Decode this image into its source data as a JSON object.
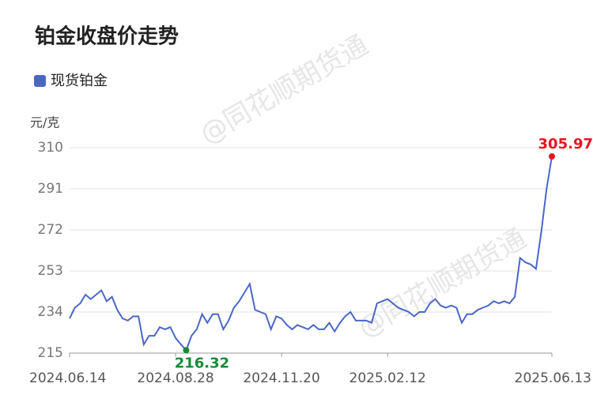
{
  "chart_data": {
    "type": "line",
    "title": "铂金收盘价走势",
    "y_label": "元/克",
    "watermark": "@同花顺期货通",
    "categories": [
      "2024.06.14",
      null,
      null,
      null,
      null,
      null,
      null,
      null,
      null,
      null,
      null,
      null,
      null,
      null,
      null,
      null,
      null,
      null,
      null,
      null,
      "2024.08.28",
      null,
      null,
      null,
      null,
      null,
      null,
      null,
      null,
      null,
      null,
      null,
      null,
      null,
      null,
      null,
      null,
      null,
      null,
      null,
      "2024.11.20",
      null,
      null,
      null,
      null,
      null,
      null,
      null,
      null,
      null,
      null,
      null,
      null,
      null,
      null,
      null,
      null,
      null,
      null,
      null,
      "2025.02.12",
      null,
      null,
      null,
      null,
      null,
      null,
      null,
      null,
      null,
      null,
      null,
      null,
      null,
      null,
      null,
      null,
      null,
      null,
      null,
      null,
      null,
      null,
      null,
      null,
      null,
      null,
      null,
      null,
      null,
      null,
      "2025.06.13"
    ],
    "series": [
      {
        "name": "现货铂金",
        "color": "#4a67c6",
        "values": [
          231,
          236,
          238,
          242,
          240,
          242,
          244,
          239,
          241,
          235,
          231,
          230,
          232,
          232,
          219,
          223,
          223,
          227,
          226,
          227,
          222,
          219,
          216.32,
          223,
          226,
          233,
          229,
          233,
          233,
          226,
          230,
          236,
          239,
          243,
          247,
          235,
          234,
          233,
          226,
          232,
          231,
          228,
          226,
          228,
          227,
          226,
          228,
          226,
          226,
          229,
          225,
          229,
          232,
          234,
          230,
          230,
          230,
          229,
          238,
          239,
          240,
          238,
          236,
          235,
          234,
          232,
          234,
          234,
          238,
          240,
          237,
          236,
          237,
          236,
          229,
          233,
          233,
          235,
          236,
          237,
          239,
          238,
          239,
          238,
          241,
          259,
          257,
          256,
          254,
          271,
          291,
          305.97
        ]
      }
    ],
    "ylim": [
      215,
      310
    ],
    "yticks": [
      215,
      234,
      253,
      272,
      291,
      310
    ],
    "grid": true
  }
}
